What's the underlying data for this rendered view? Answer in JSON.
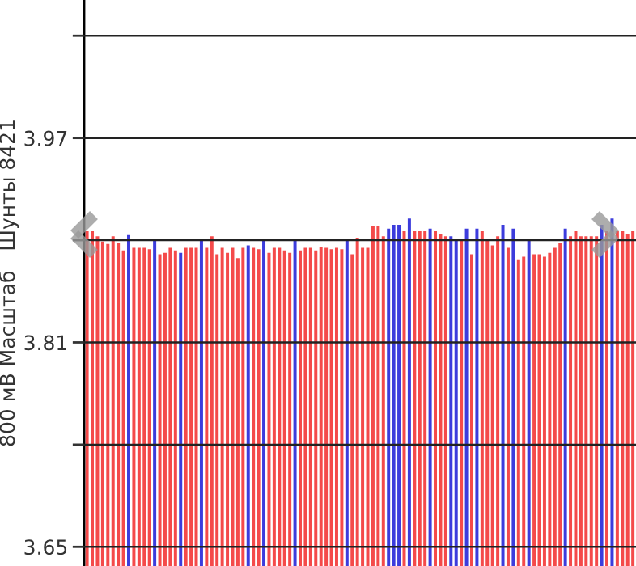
{
  "chart_data": {
    "type": "bar",
    "ylabel": "800 мВ Масштаб   Шунты 8421",
    "categories": [
      null,
      null,
      null,
      null,
      null,
      null,
      null,
      null,
      null,
      null,
      null,
      null,
      null,
      null,
      null,
      null,
      null,
      null,
      null,
      null,
      null,
      null,
      null,
      null,
      null,
      null,
      null,
      null,
      null,
      null,
      null,
      null,
      null,
      null,
      null,
      null,
      null,
      null,
      null,
      null,
      null,
      null,
      null,
      null,
      null,
      null,
      null,
      null,
      null,
      null,
      null,
      null,
      null,
      null,
      null,
      null,
      null,
      null,
      null,
      null,
      null,
      null,
      null,
      null,
      null,
      null,
      null,
      null,
      null,
      null,
      null,
      null,
      null,
      null,
      null,
      null,
      null,
      null,
      null,
      null,
      null,
      null,
      null,
      null,
      null,
      null,
      null,
      null,
      null,
      null,
      null,
      null,
      null,
      null,
      null,
      null,
      null,
      null,
      null,
      null,
      null,
      null,
      null,
      null,
      null,
      null
    ],
    "values": [
      3.897,
      3.897,
      3.893,
      3.889,
      3.887,
      3.893,
      3.888,
      3.882,
      3.894,
      3.884,
      3.884,
      3.884,
      3.883,
      3.89,
      3.879,
      3.88,
      3.884,
      3.882,
      3.88,
      3.884,
      3.884,
      3.884,
      3.89,
      3.884,
      3.893,
      3.879,
      3.884,
      3.88,
      3.884,
      3.876,
      3.884,
      3.886,
      3.884,
      3.883,
      3.89,
      3.88,
      3.884,
      3.884,
      3.882,
      3.88,
      3.89,
      3.882,
      3.884,
      3.884,
      3.882,
      3.885,
      3.884,
      3.883,
      3.884,
      3.883,
      3.89,
      3.879,
      3.892,
      3.884,
      3.884,
      3.901,
      3.901,
      3.893,
      3.899,
      3.902,
      3.902,
      3.897,
      3.907,
      3.897,
      3.897,
      3.897,
      3.899,
      3.897,
      3.895,
      3.893,
      3.893,
      3.89,
      3.89,
      3.899,
      3.879,
      3.899,
      3.897,
      3.89,
      3.886,
      3.893,
      3.902,
      3.884,
      3.899,
      3.875,
      3.877,
      3.89,
      3.879,
      3.879,
      3.877,
      3.88,
      3.884,
      3.888,
      3.899,
      3.893,
      3.897,
      3.893,
      3.893,
      3.893,
      3.893,
      3.902,
      3.897,
      3.907,
      3.897,
      3.897,
      3.895,
      3.897
    ],
    "colors": [
      "#f44a4a",
      "#f44a4a",
      "#f44a4a",
      "#f44a4a",
      "#f44a4a",
      "#f44a4a",
      "#f44a4a",
      "#f44a4a",
      "#3c3cdc",
      "#f44a4a",
      "#f44a4a",
      "#f44a4a",
      "#f44a4a",
      "#3c3cdc",
      "#f44a4a",
      "#f44a4a",
      "#f44a4a",
      "#f44a4a",
      "#3c3cdc",
      "#f44a4a",
      "#f44a4a",
      "#f44a4a",
      "#3c3cdc",
      "#f44a4a",
      "#f44a4a",
      "#f44a4a",
      "#f44a4a",
      "#f44a4a",
      "#f44a4a",
      "#f44a4a",
      "#f44a4a",
      "#3c3cdc",
      "#f44a4a",
      "#f44a4a",
      "#3c3cdc",
      "#f44a4a",
      "#f44a4a",
      "#f44a4a",
      "#f44a4a",
      "#f44a4a",
      "#3c3cdc",
      "#f44a4a",
      "#f44a4a",
      "#f44a4a",
      "#f44a4a",
      "#f44a4a",
      "#f44a4a",
      "#f44a4a",
      "#f44a4a",
      "#f44a4a",
      "#3c3cdc",
      "#f44a4a",
      "#f44a4a",
      "#f44a4a",
      "#f44a4a",
      "#f44a4a",
      "#f44a4a",
      "#f44a4a",
      "#3c3cdc",
      "#3c3cdc",
      "#3c3cdc",
      "#f44a4a",
      "#3c3cdc",
      "#f44a4a",
      "#f44a4a",
      "#f44a4a",
      "#3c3cdc",
      "#f44a4a",
      "#f44a4a",
      "#f44a4a",
      "#3c3cdc",
      "#3c3cdc",
      "#f44a4a",
      "#3c3cdc",
      "#f44a4a",
      "#3c3cdc",
      "#f44a4a",
      "#f44a4a",
      "#f44a4a",
      "#f44a4a",
      "#3c3cdc",
      "#f44a4a",
      "#3c3cdc",
      "#f44a4a",
      "#f44a4a",
      "#3c3cdc",
      "#f44a4a",
      "#f44a4a",
      "#f44a4a",
      "#f44a4a",
      "#f44a4a",
      "#f44a4a",
      "#3c3cdc",
      "#f44a4a",
      "#f44a4a",
      "#f44a4a",
      "#f44a4a",
      "#f44a4a",
      "#f44a4a",
      "#3c3cdc",
      "#f44a4a",
      "#3c3cdc",
      "#f44a4a",
      "#f44a4a",
      "#f44a4a",
      "#f44a4a"
    ],
    "ylim": [
      3.635,
      4.078
    ],
    "yticks": [
      3.65,
      {
        "value": 3.73,
        "label": null
      },
      3.81,
      {
        "value": 3.89,
        "label": null
      },
      3.97,
      {
        "value": 4.05,
        "label": null
      }
    ],
    "grid": "y",
    "tick_labels": "y"
  }
}
